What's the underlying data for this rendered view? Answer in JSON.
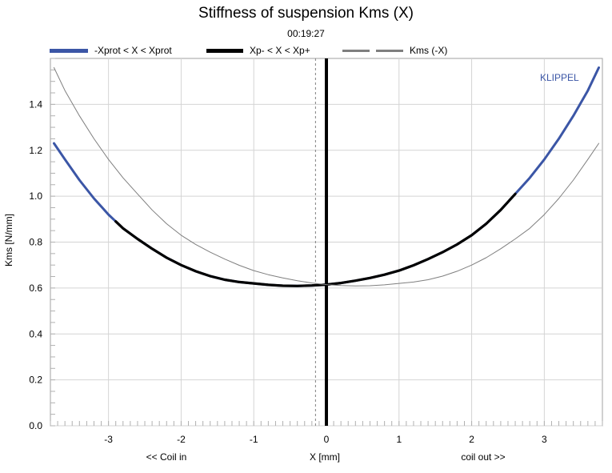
{
  "chart_data": {
    "type": "line",
    "title": "Stiffness of suspension Kms (X)",
    "subtitle": "00:19:27",
    "brand": "KLIPPEL",
    "xlabel": "X [mm]",
    "xlabel_left": "<< Coil in",
    "xlabel_right": "coil out >>",
    "ylabel": "Kms [N/mm]",
    "xlim": [
      -3.8,
      3.8
    ],
    "ylim": [
      0.0,
      1.6
    ],
    "xticks": [
      -3,
      -2,
      -1,
      0,
      1,
      2,
      3
    ],
    "yticks": [
      0.0,
      0.2,
      0.4,
      0.6,
      0.8,
      1.0,
      1.2,
      1.4
    ],
    "grid": true,
    "legend_position": "top",
    "vertical_markers": [
      {
        "x": 0.0,
        "style": "solid"
      },
      {
        "x": -0.15,
        "style": "dashed"
      }
    ],
    "series": [
      {
        "name": "-Xprot < X < Xprot",
        "color": "#3b56a6",
        "x": [
          -3.75,
          -3.6,
          -3.4,
          -3.2,
          -3.0,
          -2.9,
          -2.8,
          -2.6,
          -2.4,
          -2.2,
          -2.0,
          -1.8,
          -1.6,
          -1.4,
          -1.2,
          -1.0,
          -0.8,
          -0.6,
          -0.4,
          -0.2,
          0.0,
          0.2,
          0.4,
          0.6,
          0.8,
          1.0,
          1.2,
          1.4,
          1.6,
          1.8,
          2.0,
          2.2,
          2.4,
          2.6,
          2.8,
          3.0,
          3.2,
          3.4,
          3.6,
          3.75
        ],
        "y": [
          1.23,
          1.16,
          1.07,
          0.99,
          0.92,
          0.89,
          0.86,
          0.814,
          0.771,
          0.732,
          0.7,
          0.673,
          0.652,
          0.636,
          0.626,
          0.62,
          0.614,
          0.61,
          0.609,
          0.611,
          0.615,
          0.622,
          0.632,
          0.644,
          0.658,
          0.676,
          0.699,
          0.726,
          0.756,
          0.79,
          0.83,
          0.88,
          0.94,
          1.01,
          1.08,
          1.16,
          1.25,
          1.35,
          1.46,
          1.56
        ]
      },
      {
        "name": "Xp- < X < Xp+",
        "color": "#000000",
        "x": [
          -2.9,
          -2.8,
          -2.6,
          -2.4,
          -2.2,
          -2.0,
          -1.8,
          -1.6,
          -1.4,
          -1.2,
          -1.0,
          -0.8,
          -0.6,
          -0.4,
          -0.2,
          0.0,
          0.2,
          0.4,
          0.6,
          0.8,
          1.0,
          1.2,
          1.4,
          1.6,
          1.8,
          2.0,
          2.2,
          2.4,
          2.6
        ],
        "y": [
          0.89,
          0.86,
          0.814,
          0.771,
          0.732,
          0.7,
          0.673,
          0.652,
          0.636,
          0.626,
          0.62,
          0.614,
          0.61,
          0.609,
          0.611,
          0.615,
          0.622,
          0.632,
          0.644,
          0.658,
          0.676,
          0.699,
          0.726,
          0.756,
          0.79,
          0.83,
          0.88,
          0.94,
          1.01
        ]
      },
      {
        "name": "Kms (-X)",
        "color": "#7f7f7f",
        "x": [
          -3.75,
          -3.6,
          -3.4,
          -3.2,
          -3.0,
          -2.8,
          -2.6,
          -2.4,
          -2.2,
          -2.0,
          -1.8,
          -1.6,
          -1.4,
          -1.2,
          -1.0,
          -0.8,
          -0.6,
          -0.4,
          -0.2,
          0.0,
          0.2,
          0.4,
          0.6,
          0.8,
          1.0,
          1.2,
          1.4,
          1.6,
          1.8,
          2.0,
          2.2,
          2.4,
          2.6,
          2.8,
          3.0,
          3.2,
          3.4,
          3.6,
          3.75
        ],
        "y": [
          1.56,
          1.46,
          1.35,
          1.25,
          1.16,
          1.08,
          1.01,
          0.94,
          0.88,
          0.83,
          0.79,
          0.756,
          0.726,
          0.699,
          0.676,
          0.658,
          0.644,
          0.632,
          0.622,
          0.615,
          0.611,
          0.609,
          0.61,
          0.614,
          0.62,
          0.626,
          0.636,
          0.652,
          0.673,
          0.7,
          0.732,
          0.771,
          0.814,
          0.86,
          0.92,
          0.99,
          1.07,
          1.16,
          1.23
        ]
      }
    ]
  }
}
